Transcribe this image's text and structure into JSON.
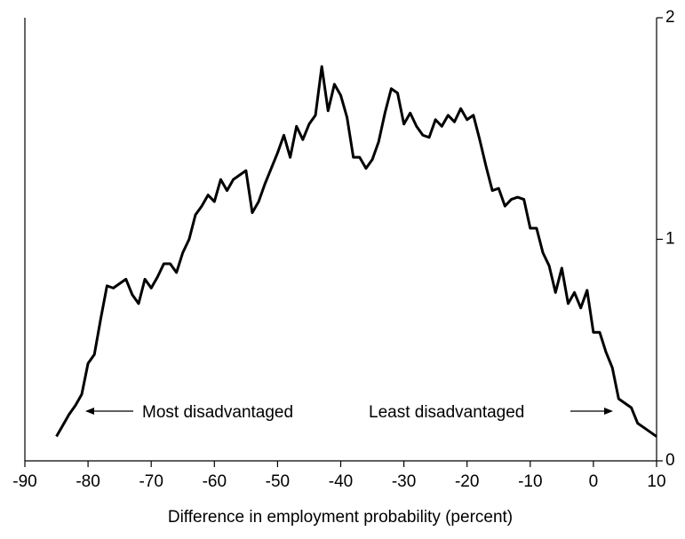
{
  "chart_data": {
    "type": "line",
    "x_label": "Difference in employment probability (percent)",
    "annotations": [
      "Most disadvantaged",
      "Least disadvantaged"
    ],
    "x": [
      -85,
      -84,
      -83,
      -82,
      -81,
      -80,
      -79,
      -78,
      -77,
      -76,
      -75,
      -74,
      -73,
      -72,
      -71,
      -70,
      -69,
      -68,
      -67,
      -66,
      -65,
      -64,
      -63,
      -62,
      -61,
      -60,
      -59,
      -58,
      -57,
      -56,
      -55,
      -54,
      -53,
      -52,
      -51,
      -50,
      -49,
      -48,
      -47,
      -46,
      -45,
      -44,
      -43,
      -42,
      -41,
      -40,
      -39,
      -38,
      -37,
      -36,
      -35,
      -34,
      -33,
      -32,
      -31,
      -30,
      -29,
      -28,
      -27,
      -26,
      -25,
      -24,
      -23,
      -22,
      -21,
      -20,
      -19,
      -18,
      -17,
      -16,
      -15,
      -14,
      -13,
      -12,
      -11,
      -10,
      -9,
      -8,
      -7,
      -6,
      -5,
      -4,
      -3,
      -2,
      -1,
      0,
      1,
      2,
      3,
      4,
      5,
      6,
      7,
      8,
      9,
      10
    ],
    "series": [
      {
        "color": "#000000",
        "values": [
          0.11,
          0.16,
          0.21,
          0.25,
          0.3,
          0.44,
          0.48,
          0.64,
          0.79,
          0.78,
          0.8,
          0.82,
          0.75,
          0.71,
          0.82,
          0.78,
          0.83,
          0.89,
          0.89,
          0.85,
          0.94,
          1.0,
          1.11,
          1.15,
          1.2,
          1.17,
          1.27,
          1.22,
          1.27,
          1.29,
          1.31,
          1.12,
          1.17,
          1.25,
          1.32,
          1.39,
          1.47,
          1.37,
          1.51,
          1.45,
          1.52,
          1.56,
          1.78,
          1.58,
          1.7,
          1.65,
          1.55,
          1.37,
          1.37,
          1.32,
          1.36,
          1.44,
          1.57,
          1.68,
          1.66,
          1.52,
          1.57,
          1.51,
          1.47,
          1.46,
          1.54,
          1.51,
          1.56,
          1.53,
          1.59,
          1.54,
          1.56,
          1.45,
          1.33,
          1.22,
          1.23,
          1.15,
          1.18,
          1.19,
          1.18,
          1.05,
          1.05,
          0.94,
          0.88,
          0.76,
          0.87,
          0.71,
          0.76,
          0.69,
          0.77,
          0.58,
          0.58,
          0.49,
          0.42,
          0.28,
          0.26,
          0.24,
          0.17,
          0.15,
          0.13,
          0.11
        ]
      }
    ],
    "xlim": [
      -90,
      10
    ],
    "xticks": [
      -90,
      -80,
      -70,
      -60,
      -50,
      -40,
      -30,
      -20,
      -10,
      0,
      10
    ],
    "ylim": [
      0,
      2
    ],
    "yticks": [
      0,
      1,
      2
    ],
    "y_axis_side": "right",
    "grid": false
  }
}
